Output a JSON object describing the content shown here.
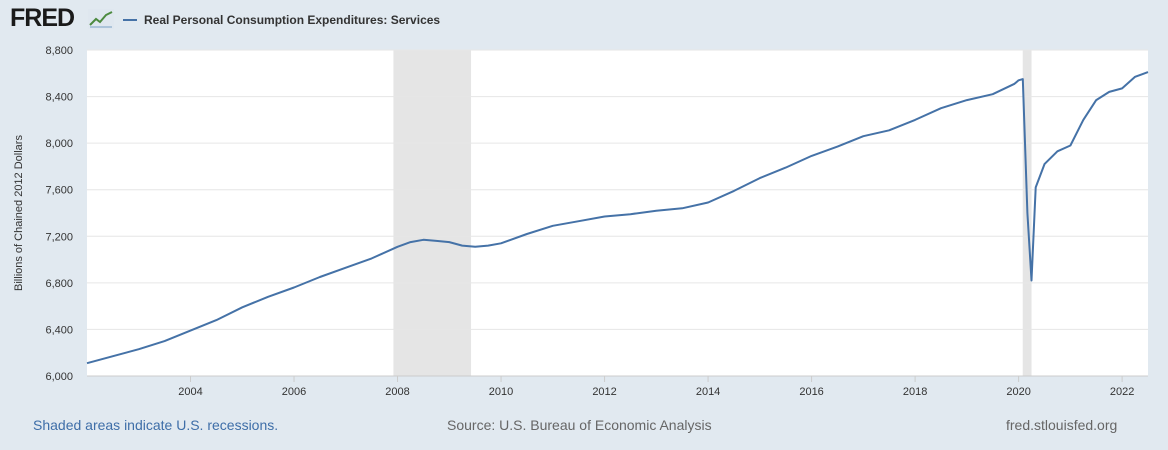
{
  "header": {
    "logo_text": "FRED",
    "logo_icon": "trend-line-icon",
    "legend_label": "Real Personal Consumption Expenditures: Services",
    "legend_color": "#4572a7"
  },
  "footer": {
    "recession_note": "Shaded areas indicate U.S. recessions.",
    "source": "Source: U.S. Bureau of Economic Analysis",
    "site": "fred.stlouisfed.org"
  },
  "chart_data": {
    "type": "line",
    "title": "",
    "xlabel": "",
    "ylabel": "Billions of Chained 2012 Dollars",
    "xlim": [
      2002.0,
      2022.5
    ],
    "ylim": [
      6000,
      8800
    ],
    "x_ticks": [
      2004,
      2006,
      2008,
      2010,
      2012,
      2014,
      2016,
      2018,
      2020,
      2022
    ],
    "y_ticks": [
      6000,
      6400,
      6800,
      7200,
      7600,
      8000,
      8400,
      8800
    ],
    "y_tick_labels": [
      "6,000",
      "6,400",
      "6,800",
      "7,200",
      "7,600",
      "8,000",
      "8,400",
      "8,800"
    ],
    "grid": "horizontal",
    "legend": "top-left",
    "line_color": "#4572a7",
    "recession_color": "#e5e5e5",
    "recessions": [
      [
        2007.92,
        2009.42
      ],
      [
        2020.08,
        2020.25
      ]
    ],
    "series": [
      {
        "name": "Real Personal Consumption Expenditures: Services",
        "x": [
          2002.0,
          2002.5,
          2003.0,
          2003.5,
          2004.0,
          2004.5,
          2005.0,
          2005.5,
          2006.0,
          2006.5,
          2007.0,
          2007.5,
          2008.0,
          2008.25,
          2008.5,
          2008.75,
          2009.0,
          2009.25,
          2009.5,
          2009.75,
          2010.0,
          2010.5,
          2011.0,
          2011.5,
          2012.0,
          2012.5,
          2013.0,
          2013.5,
          2014.0,
          2014.5,
          2015.0,
          2015.5,
          2016.0,
          2016.5,
          2017.0,
          2017.5,
          2018.0,
          2018.5,
          2019.0,
          2019.5,
          2019.92,
          2020.0,
          2020.08,
          2020.17,
          2020.25,
          2020.33,
          2020.5,
          2020.75,
          2021.0,
          2021.25,
          2021.5,
          2021.75,
          2022.0,
          2022.25,
          2022.5
        ],
        "y": [
          6110,
          6170,
          6230,
          6300,
          6390,
          6480,
          6590,
          6680,
          6760,
          6850,
          6930,
          7010,
          7110,
          7150,
          7170,
          7160,
          7150,
          7120,
          7110,
          7120,
          7140,
          7220,
          7290,
          7330,
          7370,
          7390,
          7420,
          7440,
          7490,
          7590,
          7700,
          7790,
          7890,
          7970,
          8060,
          8110,
          8200,
          8300,
          8370,
          8420,
          8510,
          8540,
          8550,
          7400,
          6820,
          7620,
          7820,
          7930,
          7980,
          8200,
          8370,
          8440,
          8470,
          8570,
          8610
        ]
      }
    ]
  }
}
